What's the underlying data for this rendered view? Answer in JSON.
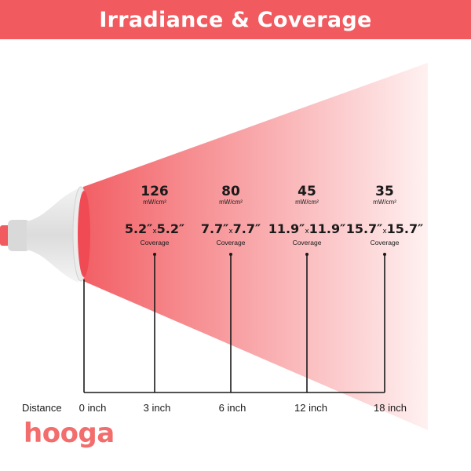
{
  "header": {
    "title": "Irradiance & Coverage"
  },
  "colors": {
    "brand_red": "#f15a5f",
    "beam_start": "#f26065",
    "beam_end": "#fff1f1",
    "logo": "#f26d6b"
  },
  "measurements": [
    {
      "irradiance": "126",
      "unit": "mW/cm²",
      "size_a": "5.2″",
      "size_b": "5.2″",
      "x": "x",
      "coverage_label": "Coverage"
    },
    {
      "irradiance": "80",
      "unit": "mW/cm²",
      "size_a": "7.7″",
      "size_b": "7.7″",
      "x": "x",
      "coverage_label": "Coverage"
    },
    {
      "irradiance": "45",
      "unit": "mW/cm²",
      "size_a": "11.9″",
      "size_b": "11.9″",
      "x": "x",
      "coverage_label": "Coverage"
    },
    {
      "irradiance": "35",
      "unit": "mW/cm²",
      "size_a": "15.7″",
      "size_b": "15.7″",
      "x": "x",
      "coverage_label": "Coverage"
    }
  ],
  "distance": {
    "label": "Distance",
    "ticks": [
      "0 inch",
      "3 inch",
      "6 inch",
      "12 inch",
      "18 inch"
    ]
  },
  "logo": {
    "text": "hooga"
  }
}
